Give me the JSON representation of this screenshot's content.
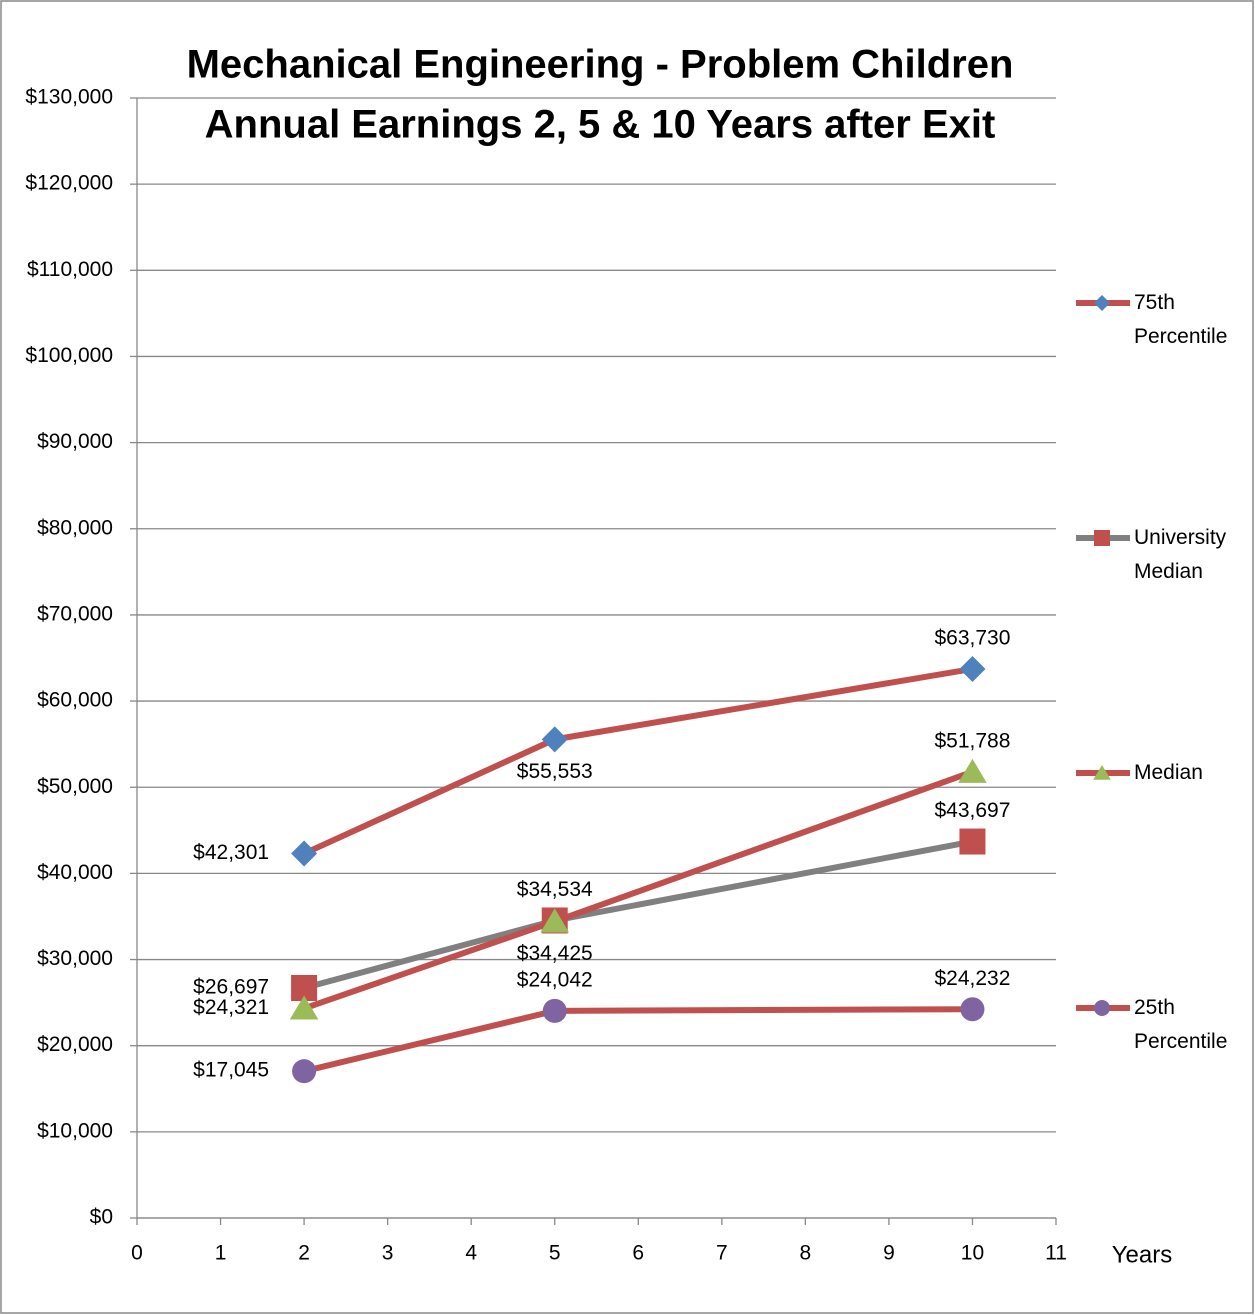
{
  "chart_data": {
    "type": "line",
    "title": [
      "Mechanical Engineering - Problem Children",
      "Annual Earnings 2, 5 & 10 Years after Exit"
    ],
    "x_label": "Years",
    "x": [
      2,
      5,
      10
    ],
    "xlim": [
      0,
      11
    ],
    "xticks": [
      0,
      1,
      2,
      3,
      4,
      5,
      6,
      7,
      8,
      9,
      10,
      11
    ],
    "ylim": [
      0,
      130000
    ],
    "yticks": [
      {
        "value": 0,
        "label": "$0"
      },
      {
        "value": 10000,
        "label": "$10,000"
      },
      {
        "value": 20000,
        "label": "$20,000"
      },
      {
        "value": 30000,
        "label": "$30,000"
      },
      {
        "value": 40000,
        "label": "$40,000"
      },
      {
        "value": 50000,
        "label": "$50,000"
      },
      {
        "value": 60000,
        "label": "$60,000"
      },
      {
        "value": 70000,
        "label": "$70,000"
      },
      {
        "value": 80000,
        "label": "$80,000"
      },
      {
        "value": 90000,
        "label": "$90,000"
      },
      {
        "value": 100000,
        "label": "$100,000"
      },
      {
        "value": 110000,
        "label": "$110,000"
      },
      {
        "value": 120000,
        "label": "$120,000"
      },
      {
        "value": 130000,
        "label": "$130,000"
      }
    ],
    "grid": true,
    "legend": "right",
    "series": [
      {
        "name": "75th Percentile",
        "color": "#c0504d",
        "marker": "diamond",
        "marker_color": "#4f81bd",
        "values": [
          42301,
          55553,
          63730
        ],
        "value_labels": [
          "$42,301",
          "$55,553",
          "$63,730"
        ]
      },
      {
        "name": "University Median",
        "color": "#808080",
        "marker": "square",
        "marker_color": "#c0504d",
        "values": [
          26697,
          34534,
          43697
        ],
        "value_labels": [
          "$26,697",
          "$34,534",
          "$43,697"
        ]
      },
      {
        "name": "Median",
        "color": "#c0504d",
        "marker": "triangle",
        "marker_color": "#9bbb59",
        "values": [
          24321,
          34425,
          51788
        ],
        "value_labels": [
          "$24,321",
          "$34,425",
          "$51,788"
        ]
      },
      {
        "name": "25th Percentile",
        "color": "#c0504d",
        "marker": "circle",
        "marker_color": "#8064a2",
        "values": [
          17045,
          24042,
          24232
        ],
        "value_labels": [
          "$17,045",
          "$24,042",
          "$24,232"
        ]
      }
    ]
  }
}
